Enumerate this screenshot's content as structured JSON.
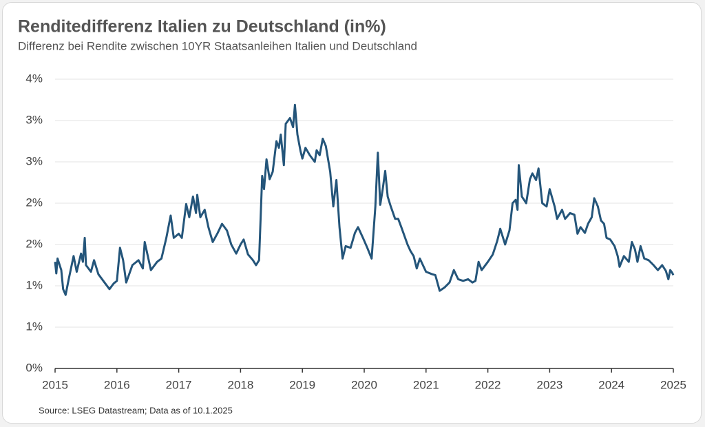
{
  "chart_data": {
    "type": "line",
    "title": "Renditedifferenz Italien zu Deutschland (in%)",
    "subtitle": "Differenz bei Rendite zwischen 10YR Staatsanleihen Italien und Deutschland",
    "source": "Source: LSEG Datastream; Data as of 10.1.2025",
    "color": "#24557a",
    "grid": true,
    "xlim": [
      2015,
      2025
    ],
    "xticks": [
      2015,
      2016,
      2017,
      2018,
      2019,
      2020,
      2021,
      2022,
      2023,
      2024,
      2025
    ],
    "ylim": [
      0,
      3.5
    ],
    "yticks": [
      {
        "value": 0,
        "label": "0%"
      },
      {
        "value": 0.5,
        "label": "1%"
      },
      {
        "value": 1,
        "label": "1%"
      },
      {
        "value": 1.5,
        "label": "2%"
      },
      {
        "value": 2,
        "label": "2%"
      },
      {
        "value": 2.5,
        "label": "3%"
      },
      {
        "value": 3,
        "label": "3%"
      },
      {
        "value": 3.5,
        "label": "4%"
      }
    ],
    "x": [
      2015.0,
      2015.02,
      2015.04,
      2015.1,
      2015.13,
      2015.17,
      2015.22,
      2015.3,
      2015.35,
      2015.42,
      2015.45,
      2015.48,
      2015.5,
      2015.58,
      2015.63,
      2015.7,
      2015.8,
      2015.88,
      2015.95,
      2016.0,
      2016.05,
      2016.1,
      2016.15,
      2016.25,
      2016.35,
      2016.42,
      2016.45,
      2016.5,
      2016.55,
      2016.65,
      2016.72,
      2016.8,
      2016.87,
      2016.92,
      2017.0,
      2017.05,
      2017.12,
      2017.17,
      2017.23,
      2017.28,
      2017.3,
      2017.35,
      2017.42,
      2017.48,
      2017.55,
      2017.63,
      2017.7,
      2017.78,
      2017.85,
      2017.93,
      2018.0,
      2018.05,
      2018.12,
      2018.2,
      2018.25,
      2018.3,
      2018.35,
      2018.38,
      2018.42,
      2018.47,
      2018.52,
      2018.58,
      2018.62,
      2018.65,
      2018.7,
      2018.73,
      2018.8,
      2018.85,
      2018.88,
      2018.92,
      2018.97,
      2019.0,
      2019.05,
      2019.12,
      2019.2,
      2019.23,
      2019.28,
      2019.33,
      2019.38,
      2019.45,
      2019.5,
      2019.55,
      2019.6,
      2019.65,
      2019.7,
      2019.78,
      2019.85,
      2019.9,
      2019.98,
      2020.05,
      2020.12,
      2020.18,
      2020.22,
      2020.26,
      2020.3,
      2020.34,
      2020.38,
      2020.43,
      2020.5,
      2020.55,
      2020.6,
      2020.7,
      2020.75,
      2020.8,
      2020.85,
      2020.9,
      2021.0,
      2021.1,
      2021.15,
      2021.22,
      2021.3,
      2021.38,
      2021.45,
      2021.52,
      2021.6,
      2021.68,
      2021.75,
      2021.8,
      2021.85,
      2021.9,
      2022.0,
      2022.08,
      2022.15,
      2022.2,
      2022.28,
      2022.35,
      2022.4,
      2022.45,
      2022.48,
      2022.5,
      2022.55,
      2022.62,
      2022.68,
      2022.72,
      2022.78,
      2022.82,
      2022.88,
      2022.95,
      2023.0,
      2023.08,
      2023.12,
      2023.2,
      2023.25,
      2023.33,
      2023.4,
      2023.45,
      2023.5,
      2023.57,
      2023.62,
      2023.68,
      2023.72,
      2023.78,
      2023.83,
      2023.88,
      2023.92,
      2023.98,
      2024.05,
      2024.1,
      2024.13,
      2024.2,
      2024.28,
      2024.33,
      2024.38,
      2024.42,
      2024.47,
      2024.53,
      2024.6,
      2024.68,
      2024.75,
      2024.82,
      2024.88,
      2024.92,
      2024.95,
      2024.98,
      2025.0
    ],
    "values": [
      1.29,
      1.15,
      1.33,
      1.19,
      0.96,
      0.89,
      1.08,
      1.36,
      1.17,
      1.39,
      1.29,
      1.58,
      1.25,
      1.17,
      1.31,
      1.14,
      1.04,
      0.96,
      1.03,
      1.06,
      1.46,
      1.31,
      1.04,
      1.25,
      1.31,
      1.21,
      1.53,
      1.36,
      1.19,
      1.29,
      1.33,
      1.58,
      1.85,
      1.58,
      1.63,
      1.58,
      1.99,
      1.83,
      2.08,
      1.88,
      2.1,
      1.83,
      1.92,
      1.71,
      1.53,
      1.64,
      1.75,
      1.67,
      1.5,
      1.39,
      1.5,
      1.56,
      1.38,
      1.31,
      1.25,
      1.31,
      2.33,
      2.17,
      2.53,
      2.29,
      2.38,
      2.75,
      2.67,
      2.83,
      2.46,
      2.96,
      3.03,
      2.92,
      3.19,
      2.83,
      2.63,
      2.54,
      2.67,
      2.58,
      2.5,
      2.64,
      2.58,
      2.78,
      2.69,
      2.38,
      1.96,
      2.28,
      1.71,
      1.33,
      1.48,
      1.46,
      1.64,
      1.71,
      1.58,
      1.46,
      1.33,
      1.96,
      2.61,
      1.98,
      2.17,
      2.39,
      2.08,
      1.96,
      1.81,
      1.81,
      1.71,
      1.5,
      1.42,
      1.36,
      1.21,
      1.33,
      1.17,
      1.14,
      1.13,
      0.94,
      0.98,
      1.04,
      1.19,
      1.08,
      1.06,
      1.08,
      1.04,
      1.06,
      1.29,
      1.19,
      1.29,
      1.38,
      1.54,
      1.69,
      1.5,
      1.67,
      2.0,
      2.04,
      1.92,
      2.46,
      2.08,
      2.0,
      2.29,
      2.36,
      2.28,
      2.42,
      2.0,
      1.96,
      2.17,
      1.96,
      1.81,
      1.92,
      1.81,
      1.88,
      1.86,
      1.63,
      1.71,
      1.64,
      1.75,
      1.83,
      2.06,
      1.96,
      1.79,
      1.75,
      1.58,
      1.56,
      1.48,
      1.36,
      1.23,
      1.36,
      1.29,
      1.53,
      1.44,
      1.29,
      1.48,
      1.33,
      1.31,
      1.25,
      1.19,
      1.25,
      1.18,
      1.08,
      1.19,
      1.16,
      1.13
    ]
  }
}
